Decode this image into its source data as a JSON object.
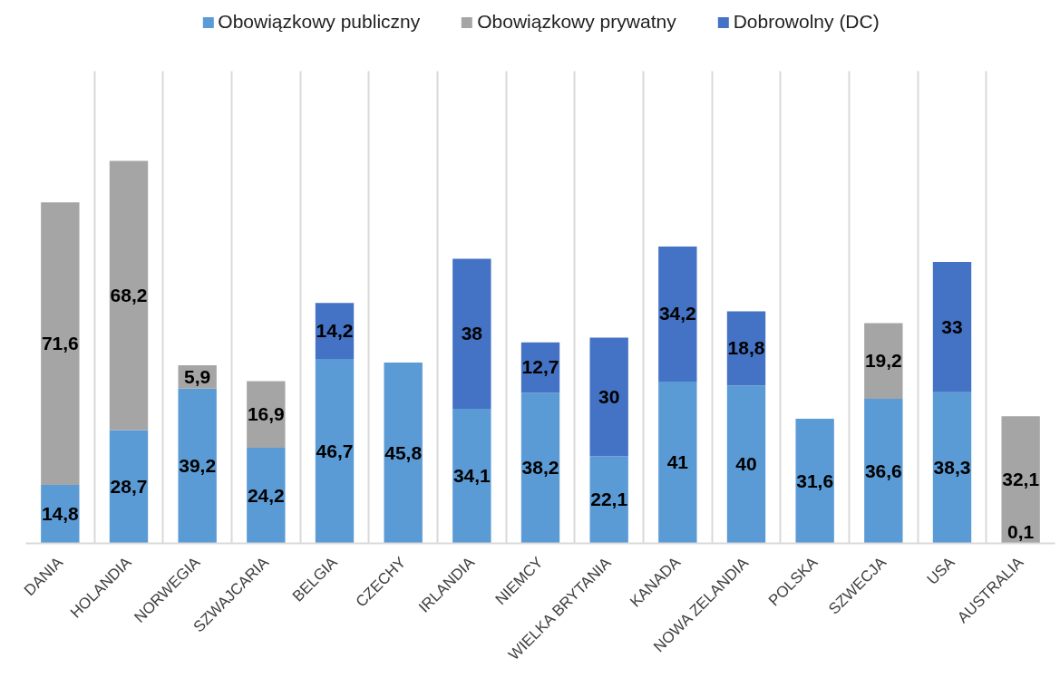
{
  "chart_data": {
    "type": "bar",
    "stacked": true,
    "legend": "top",
    "grid": "x",
    "tick_labels": "x",
    "categories": [
      "DANIA",
      "HOLANDIA",
      "NORWEGIA",
      "SZWAJCARIA",
      "BELGIA",
      "CZECHY",
      "IRLANDIA",
      "NIEMCY",
      "WIELKA BRYTANIA",
      "KANADA",
      "NOWA ZELANDIA",
      "POLSKA",
      "SZWECJA",
      "USA",
      "AUSTRALIA"
    ],
    "series": [
      {
        "name": "Obowiązkowy publiczny",
        "color": "#5b9bd5",
        "values": [
          14.8,
          28.7,
          39.2,
          24.2,
          46.7,
          45.8,
          34.1,
          38.2,
          22.1,
          41,
          40,
          31.6,
          36.6,
          38.3,
          0.1
        ],
        "value_labels": [
          "14,8",
          "28,7",
          "39,2",
          "24,2",
          "46,7",
          "45,8",
          "34,1",
          "38,2",
          "22,1",
          "41",
          "40",
          "31,6",
          "36,6",
          "38,3",
          "0,1"
        ]
      },
      {
        "name": "Obowiązkowy prywatny",
        "color": "#a5a5a5",
        "values": [
          71.6,
          68.2,
          5.9,
          16.9,
          null,
          null,
          null,
          null,
          null,
          null,
          null,
          null,
          19.2,
          null,
          32.1
        ],
        "value_labels": [
          "71,6",
          "68,2",
          "5,9",
          "16,9",
          null,
          null,
          null,
          null,
          null,
          null,
          null,
          null,
          "19,2",
          null,
          "32,1"
        ]
      },
      {
        "name": "Dobrowolny (DC)",
        "color": "#4472c4",
        "values": [
          null,
          null,
          null,
          null,
          14.2,
          null,
          38,
          12.7,
          30,
          34.2,
          18.8,
          null,
          null,
          33,
          null
        ],
        "value_labels": [
          null,
          null,
          null,
          null,
          "14,2",
          null,
          "38",
          "12,7",
          "30",
          "34,2",
          "18,8",
          null,
          null,
          "33",
          null
        ]
      }
    ]
  }
}
